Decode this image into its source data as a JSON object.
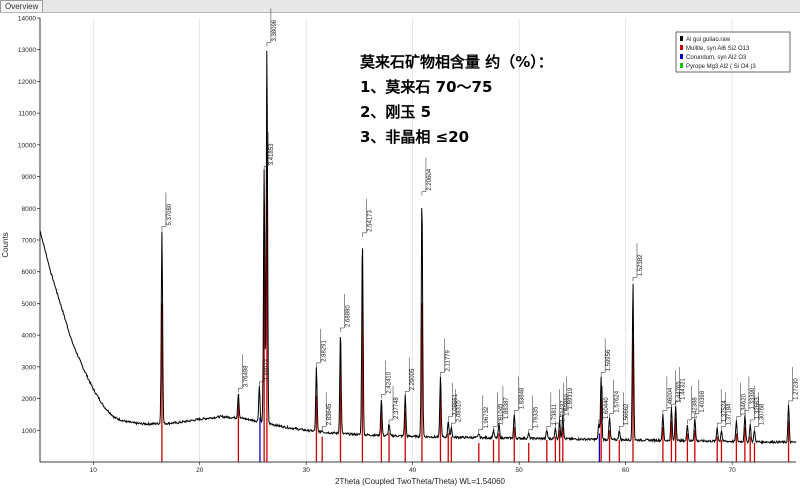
{
  "tab": {
    "label": "Overview"
  },
  "annotation": {
    "title": "莫来石矿物相含量 约（%）：",
    "lines": [
      "1、莫来石 70～75",
      "2、刚玉 5",
      "3、非晶相 ≤20"
    ]
  },
  "legend": [
    {
      "label": "Al gui guliao.raw",
      "color": "#000000"
    },
    {
      "label": "Mullite, syn Al6 Si2 O13",
      "color": "#cc0000"
    },
    {
      "label": "Corundum, syn Al2 O3",
      "color": "#0000cc"
    },
    {
      "label": "Pyrope Mg3 Al2 ( Si O4 )3",
      "color": "#00cc00"
    }
  ],
  "chart_data": {
    "type": "line",
    "xlabel": "2Theta (Coupled TwoTheta/Theta) WL=1.54060",
    "ylabel": "Counts",
    "xlim": [
      5,
      76
    ],
    "ylim": [
      0,
      14000
    ],
    "xticks": [
      10,
      20,
      30,
      40,
      50,
      60,
      70
    ],
    "yticks": [
      1000,
      2000,
      3000,
      4000,
      5000,
      6000,
      7000,
      8000,
      9000,
      10000,
      11000,
      12000,
      13000,
      14000
    ],
    "grid": "vertical",
    "series": [
      {
        "name": "Al gui guliao.raw",
        "color": "#000000",
        "x": [
          5,
          6,
          7,
          8,
          9,
          10,
          11,
          12,
          13,
          14,
          15,
          16,
          17,
          18,
          20,
          22,
          24,
          26,
          28,
          30,
          32,
          34,
          36,
          38,
          40,
          42,
          44,
          46,
          48,
          50,
          52,
          54,
          56,
          58,
          60,
          62,
          64,
          66,
          68,
          70,
          72,
          74,
          76
        ],
        "y": [
          7300,
          6000,
          4900,
          3800,
          3000,
          2300,
          1750,
          1400,
          1280,
          1220,
          1200,
          1210,
          1220,
          1240,
          1350,
          1430,
          1380,
          1250,
          1100,
          1000,
          930,
          880,
          850,
          830,
          810,
          790,
          780,
          770,
          760,
          750,
          740,
          730,
          720,
          710,
          700,
          690,
          680,
          670,
          660,
          650,
          640,
          630,
          620
        ]
      }
    ],
    "peaks": [
      {
        "two_theta": 16.45,
        "height": 7300,
        "mullite": 5000,
        "corundum": 0,
        "pyrope": 0,
        "d_label": "5.37080"
      },
      {
        "two_theta": 23.63,
        "height": 2200,
        "mullite": 1900,
        "corundum": 0,
        "pyrope": 0,
        "d_label": "3.76498"
      },
      {
        "two_theta": 25.6,
        "height": 2400,
        "mullite": 0,
        "corundum": 1400,
        "pyrope": 0,
        "d_label": "3.48073"
      },
      {
        "two_theta": 26.05,
        "height": 9200,
        "mullite": 8200,
        "corundum": 0,
        "pyrope": 0,
        "d_label": "3.41853"
      },
      {
        "two_theta": 26.31,
        "height": 13100,
        "mullite": 11800,
        "corundum": 0,
        "pyrope": 0,
        "d_label": "3.38096"
      },
      {
        "two_theta": 30.96,
        "height": 3000,
        "mullite": 2100,
        "corundum": 0,
        "pyrope": 0,
        "d_label": "2.88291"
      },
      {
        "two_theta": 31.5,
        "height": 1000,
        "mullite": 800,
        "corundum": 0,
        "pyrope": 0,
        "d_label": "2.83645"
      },
      {
        "two_theta": 33.22,
        "height": 4100,
        "mullite": 3100,
        "corundum": 0,
        "pyrope": 0,
        "d_label": "2.68880"
      },
      {
        "two_theta": 35.28,
        "height": 7100,
        "mullite": 5500,
        "corundum": 0,
        "pyrope": 0,
        "d_label": "2.54173"
      },
      {
        "two_theta": 37.06,
        "height": 2000,
        "mullite": 1600,
        "corundum": 0,
        "pyrope": 0,
        "d_label": "2.42410"
      },
      {
        "two_theta": 37.78,
        "height": 1200,
        "mullite": 900,
        "corundum": 0,
        "pyrope": 0,
        "d_label": "2.37748"
      },
      {
        "two_theta": 39.3,
        "height": 2100,
        "mullite": 1600,
        "corundum": 0,
        "pyrope": 0,
        "d_label": "2.29005"
      },
      {
        "two_theta": 40.87,
        "height": 8400,
        "mullite": 5000,
        "corundum": 0,
        "pyrope": 0,
        "d_label": "2.20604"
      },
      {
        "two_theta": 42.61,
        "height": 2700,
        "mullite": 2100,
        "corundum": 0,
        "pyrope": 0,
        "d_label": "2.11779"
      },
      {
        "two_theta": 43.34,
        "height": 1300,
        "mullite": 900,
        "corundum": 0,
        "pyrope": 0,
        "d_label": "2.08661"
      },
      {
        "two_theta": 43.63,
        "height": 1100,
        "mullite": 800,
        "corundum": 0,
        "pyrope": 0,
        "d_label": "2.08310"
      },
      {
        "two_theta": 46.21,
        "height": 900,
        "mullite": 600,
        "corundum": 0,
        "pyrope": 0,
        "d_label": "1.96732"
      },
      {
        "two_theta": 47.59,
        "height": 1000,
        "mullite": 700,
        "corundum": 0,
        "pyrope": 0,
        "d_label": "1.91045"
      },
      {
        "two_theta": 48.1,
        "height": 1200,
        "mullite": 900,
        "corundum": 0,
        "pyrope": 0,
        "d_label": "1.88387"
      },
      {
        "two_theta": 49.54,
        "height": 1500,
        "mullite": 1100,
        "corundum": 0,
        "pyrope": 0,
        "d_label": "1.83848"
      },
      {
        "two_theta": 50.9,
        "height": 900,
        "mullite": 600,
        "corundum": 0,
        "pyrope": 0,
        "d_label": "1.79335"
      },
      {
        "two_theta": 52.6,
        "height": 1000,
        "mullite": 700,
        "corundum": 0,
        "pyrope": 0,
        "d_label": "1.73811"
      },
      {
        "two_theta": 53.4,
        "height": 1100,
        "mullite": 800,
        "corundum": 0,
        "pyrope": 0,
        "d_label": "1.71437"
      },
      {
        "two_theta": 53.8,
        "height": 1300,
        "mullite": 1000,
        "corundum": 0,
        "pyrope": 0,
        "d_label": "1.69850"
      },
      {
        "two_theta": 54.1,
        "height": 1500,
        "mullite": 1100,
        "corundum": 0,
        "pyrope": 0,
        "d_label": "1.69319"
      },
      {
        "two_theta": 57.48,
        "height": 1200,
        "mullite": 0,
        "corundum": 900,
        "pyrope": 0,
        "d_label": "1.60440"
      },
      {
        "two_theta": 57.7,
        "height": 2700,
        "mullite": 2000,
        "corundum": 0,
        "pyrope": 0,
        "d_label": "1.59956"
      },
      {
        "two_theta": 58.49,
        "height": 1400,
        "mullite": 1000,
        "corundum": 0,
        "pyrope": 0,
        "d_label": "1.57624"
      },
      {
        "two_theta": 59.4,
        "height": 1000,
        "mullite": 700,
        "corundum": 0,
        "pyrope": 0,
        "d_label": "1.56662"
      },
      {
        "two_theta": 60.69,
        "height": 5700,
        "mullite": 3900,
        "corundum": 0,
        "pyrope": 0,
        "d_label": "1.52382"
      },
      {
        "two_theta": 63.5,
        "height": 1500,
        "mullite": 1100,
        "corundum": 0,
        "pyrope": 0,
        "d_label": "1.46004"
      },
      {
        "two_theta": 64.3,
        "height": 1700,
        "mullite": 1300,
        "corundum": 0,
        "pyrope": 0,
        "d_label": "1.44765"
      },
      {
        "two_theta": 64.7,
        "height": 1800,
        "mullite": 1400,
        "corundum": 0,
        "pyrope": 0,
        "d_label": "1.44321"
      },
      {
        "two_theta": 65.8,
        "height": 1200,
        "mullite": 900,
        "corundum": 0,
        "pyrope": 0,
        "d_label": "1.42388"
      },
      {
        "two_theta": 66.5,
        "height": 1400,
        "mullite": 1000,
        "corundum": 0,
        "pyrope": 0,
        "d_label": "1.40398"
      },
      {
        "two_theta": 68.6,
        "height": 1100,
        "mullite": 800,
        "corundum": 0,
        "pyrope": 0,
        "d_label": "1.37524"
      },
      {
        "two_theta": 69.0,
        "height": 1000,
        "mullite": 700,
        "corundum": 0,
        "pyrope": 0,
        "d_label": "1.37184"
      },
      {
        "two_theta": 70.4,
        "height": 1300,
        "mullite": 900,
        "corundum": 0,
        "pyrope": 0,
        "d_label": "1.34620"
      },
      {
        "two_theta": 71.2,
        "height": 1500,
        "mullite": 1100,
        "corundum": 0,
        "pyrope": 0,
        "d_label": "1.33390"
      },
      {
        "two_theta": 71.7,
        "height": 1200,
        "mullite": 800,
        "corundum": 0,
        "pyrope": 0,
        "d_label": "1.32663"
      },
      {
        "two_theta": 72.1,
        "height": 1000,
        "mullite": 600,
        "corundum": 0,
        "pyrope": 0,
        "d_label": "1.30768"
      },
      {
        "two_theta": 75.3,
        "height": 1800,
        "mullite": 1300,
        "corundum": 0,
        "pyrope": 0,
        "d_label": "1.27230"
      }
    ]
  }
}
